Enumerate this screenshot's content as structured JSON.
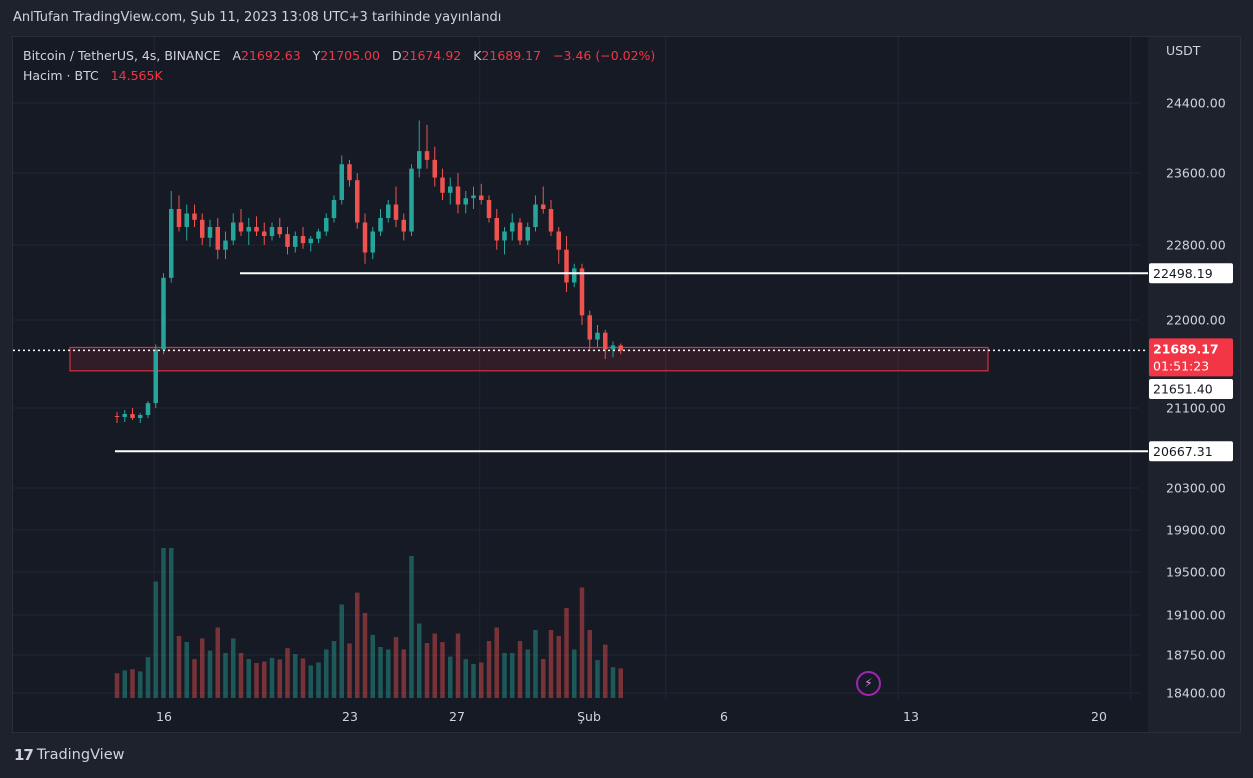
{
  "header": {
    "title": "AnlTufan TradingView.com, Şub 11, 2023 13:08 UTC+3 tarihinde yayınlandı"
  },
  "legend": {
    "symbol": "Bitcoin / TetherUS, 4s, BINANCE",
    "open_label": "A",
    "open": "21692.63",
    "high_label": "Y",
    "high": "21705.00",
    "low_label": "D",
    "low": "21674.92",
    "close_label": "K",
    "close": "21689.17",
    "change": "−3.46 (−0.02%)",
    "volume_label": "Hacim · BTC",
    "volume": "14.565K"
  },
  "footer": {
    "brand": "TradingView",
    "brand_mark": "17"
  },
  "chart_data": {
    "type": "candlestick",
    "currency": "USDT",
    "y_ticks": [
      "24400.00",
      "23600.00",
      "22800.00",
      "22000.00",
      "21100.00",
      "20300.00",
      "19900.00",
      "19500.00",
      "19100.00",
      "18750.00",
      "18400.00"
    ],
    "x_ticks": [
      "16",
      "23",
      "27",
      "Şub",
      "6",
      "13",
      "20"
    ],
    "horizontal_lines": [
      {
        "label": "22498.19",
        "value": 22498.19,
        "color": "#ffffff"
      },
      {
        "label": "20667.31",
        "value": 20667.31,
        "color": "#ffffff"
      }
    ],
    "zone": {
      "top": 21720,
      "bottom": 21480,
      "color": "#f23645"
    },
    "current_price": {
      "label": "21689.17",
      "countdown": "01:51:23",
      "value": 21689.17,
      "color": "#f23645"
    },
    "extra_price_label": {
      "label": "21651.40",
      "value": 21651.4
    },
    "colors": {
      "up": "#26a69a",
      "down": "#ef5350",
      "background": "#161a25",
      "grid": "#232632"
    },
    "candles": [
      {
        "x": 0.0,
        "o": 21020,
        "h": 21060,
        "l": 20950,
        "c": 21010
      },
      {
        "x": 0.1667,
        "o": 21010,
        "h": 21080,
        "l": 20960,
        "c": 21040
      },
      {
        "x": 0.3333,
        "o": 21040,
        "h": 21100,
        "l": 20980,
        "c": 21000
      },
      {
        "x": 0.5,
        "o": 21000,
        "h": 21050,
        "l": 20950,
        "c": 21030
      },
      {
        "x": 0.6667,
        "o": 21030,
        "h": 21170,
        "l": 21000,
        "c": 21150
      },
      {
        "x": 0.8333,
        "o": 21150,
        "h": 21750,
        "l": 21100,
        "c": 21700
      },
      {
        "x": 1.0,
        "o": 21700,
        "h": 22500,
        "l": 21650,
        "c": 22450
      },
      {
        "x": 1.1667,
        "o": 22450,
        "h": 23400,
        "l": 22400,
        "c": 23200
      },
      {
        "x": 1.3333,
        "o": 23200,
        "h": 23350,
        "l": 22950,
        "c": 23000
      },
      {
        "x": 1.5,
        "o": 23000,
        "h": 23250,
        "l": 22850,
        "c": 23150
      },
      {
        "x": 1.6667,
        "o": 23150,
        "h": 23250,
        "l": 23000,
        "c": 23080
      },
      {
        "x": 1.8333,
        "o": 23080,
        "h": 23150,
        "l": 22800,
        "c": 22880
      },
      {
        "x": 2.0,
        "o": 22880,
        "h": 23080,
        "l": 22780,
        "c": 23000
      },
      {
        "x": 2.1667,
        "o": 23000,
        "h": 23100,
        "l": 22650,
        "c": 22750
      },
      {
        "x": 2.3333,
        "o": 22750,
        "h": 22950,
        "l": 22650,
        "c": 22850
      },
      {
        "x": 2.5,
        "o": 22850,
        "h": 23150,
        "l": 22800,
        "c": 23050
      },
      {
        "x": 2.6667,
        "o": 23050,
        "h": 23200,
        "l": 22900,
        "c": 22950
      },
      {
        "x": 2.8333,
        "o": 22950,
        "h": 23100,
        "l": 22800,
        "c": 23000
      },
      {
        "x": 3.0,
        "o": 23000,
        "h": 23120,
        "l": 22900,
        "c": 22950
      },
      {
        "x": 3.1667,
        "o": 22950,
        "h": 23050,
        "l": 22800,
        "c": 22900
      },
      {
        "x": 3.3333,
        "o": 22900,
        "h": 23050,
        "l": 22850,
        "c": 23000
      },
      {
        "x": 3.5,
        "o": 23000,
        "h": 23100,
        "l": 22880,
        "c": 22920
      },
      {
        "x": 3.6667,
        "o": 22920,
        "h": 23000,
        "l": 22700,
        "c": 22780
      },
      {
        "x": 3.8333,
        "o": 22780,
        "h": 22950,
        "l": 22720,
        "c": 22900
      },
      {
        "x": 4.0,
        "o": 22900,
        "h": 23000,
        "l": 22760,
        "c": 22820
      },
      {
        "x": 4.1667,
        "o": 22820,
        "h": 22900,
        "l": 22730,
        "c": 22870
      },
      {
        "x": 4.3333,
        "o": 22870,
        "h": 22980,
        "l": 22820,
        "c": 22950
      },
      {
        "x": 4.5,
        "o": 22950,
        "h": 23150,
        "l": 22900,
        "c": 23100
      },
      {
        "x": 4.6667,
        "o": 23100,
        "h": 23350,
        "l": 23050,
        "c": 23300
      },
      {
        "x": 4.8333,
        "o": 23300,
        "h": 23800,
        "l": 23250,
        "c": 23700
      },
      {
        "x": 5.0,
        "o": 23700,
        "h": 23750,
        "l": 23450,
        "c": 23520
      },
      {
        "x": 5.1667,
        "o": 23520,
        "h": 23600,
        "l": 22980,
        "c": 23050
      },
      {
        "x": 5.3333,
        "o": 23050,
        "h": 23150,
        "l": 22600,
        "c": 22720
      },
      {
        "x": 5.5,
        "o": 22720,
        "h": 23000,
        "l": 22650,
        "c": 22950
      },
      {
        "x": 5.6667,
        "o": 22950,
        "h": 23200,
        "l": 22900,
        "c": 23100
      },
      {
        "x": 5.8333,
        "o": 23100,
        "h": 23300,
        "l": 23050,
        "c": 23250
      },
      {
        "x": 6.0,
        "o": 23250,
        "h": 23450,
        "l": 23000,
        "c": 23080
      },
      {
        "x": 6.1667,
        "o": 23080,
        "h": 23150,
        "l": 22850,
        "c": 22950
      },
      {
        "x": 6.3333,
        "o": 22950,
        "h": 23700,
        "l": 22900,
        "c": 23650
      },
      {
        "x": 6.5,
        "o": 23650,
        "h": 24200,
        "l": 23550,
        "c": 23850
      },
      {
        "x": 6.6667,
        "o": 23850,
        "h": 24150,
        "l": 23650,
        "c": 23750
      },
      {
        "x": 6.8333,
        "o": 23750,
        "h": 23900,
        "l": 23450,
        "c": 23550
      },
      {
        "x": 7.0,
        "o": 23550,
        "h": 23650,
        "l": 23300,
        "c": 23380
      },
      {
        "x": 7.1667,
        "o": 23380,
        "h": 23550,
        "l": 23250,
        "c": 23450
      },
      {
        "x": 7.3333,
        "o": 23450,
        "h": 23600,
        "l": 23150,
        "c": 23250
      },
      {
        "x": 7.5,
        "o": 23250,
        "h": 23400,
        "l": 23150,
        "c": 23320
      },
      {
        "x": 7.6667,
        "o": 23320,
        "h": 23450,
        "l": 23200,
        "c": 23350
      },
      {
        "x": 7.8333,
        "o": 23350,
        "h": 23480,
        "l": 23250,
        "c": 23300
      },
      {
        "x": 8.0,
        "o": 23300,
        "h": 23350,
        "l": 23050,
        "c": 23100
      },
      {
        "x": 8.1667,
        "o": 23100,
        "h": 23200,
        "l": 22750,
        "c": 22850
      },
      {
        "x": 8.3333,
        "o": 22850,
        "h": 23000,
        "l": 22700,
        "c": 22950
      },
      {
        "x": 8.5,
        "o": 22950,
        "h": 23150,
        "l": 22850,
        "c": 23050
      },
      {
        "x": 8.6667,
        "o": 23050,
        "h": 23100,
        "l": 22800,
        "c": 22850
      },
      {
        "x": 8.8333,
        "o": 22850,
        "h": 23050,
        "l": 22800,
        "c": 23000
      },
      {
        "x": 9.0,
        "o": 23000,
        "h": 23350,
        "l": 22950,
        "c": 23250
      },
      {
        "x": 9.1667,
        "o": 23250,
        "h": 23450,
        "l": 23150,
        "c": 23200
      },
      {
        "x": 9.3333,
        "o": 23200,
        "h": 23300,
        "l": 22900,
        "c": 22950
      },
      {
        "x": 9.5,
        "o": 22950,
        "h": 23000,
        "l": 22600,
        "c": 22750
      },
      {
        "x": 9.6667,
        "o": 22750,
        "h": 22900,
        "l": 22300,
        "c": 22400
      },
      {
        "x": 9.8333,
        "o": 22400,
        "h": 22600,
        "l": 22350,
        "c": 22550
      },
      {
        "x": 10.0,
        "o": 22550,
        "h": 22600,
        "l": 21950,
        "c": 22050
      },
      {
        "x": 10.1667,
        "o": 22050,
        "h": 22100,
        "l": 21700,
        "c": 21800
      },
      {
        "x": 10.3333,
        "o": 21800,
        "h": 21950,
        "l": 21720,
        "c": 21870
      },
      {
        "x": 10.5,
        "o": 21870,
        "h": 21900,
        "l": 21600,
        "c": 21700
      },
      {
        "x": 10.6667,
        "o": 21700,
        "h": 21780,
        "l": 21620,
        "c": 21740
      },
      {
        "x": 10.8333,
        "o": 21740,
        "h": 21760,
        "l": 21650,
        "c": 21689
      }
    ]
  }
}
